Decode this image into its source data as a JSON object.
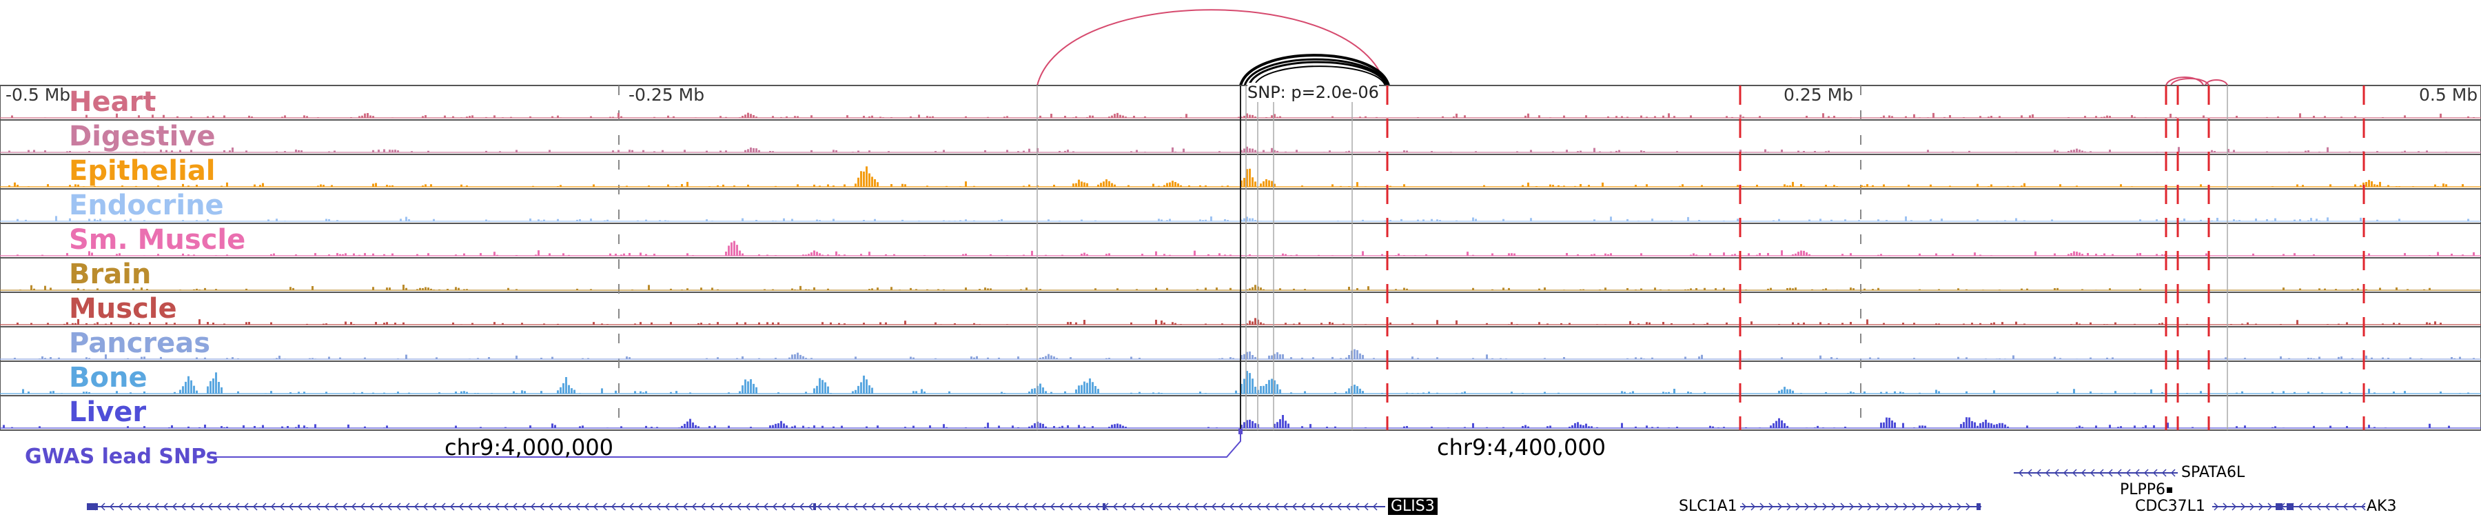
{
  "scale": {
    "left": "-0.5 Mb",
    "left_mid": "-0.25 Mb",
    "right_mid": "0.25 Mb",
    "right": "0.5 Mb"
  },
  "snp_label": "SNP: p=2.0e-06",
  "tracks": [
    {
      "name": "Heart",
      "color": "#d16d84"
    },
    {
      "name": "Digestive",
      "color": "#c97c9f"
    },
    {
      "name": "Epithelial",
      "color": "#f39c12"
    },
    {
      "name": "Endocrine",
      "color": "#9ec3f3"
    },
    {
      "name": "Sm. Muscle",
      "color": "#ea6fb0"
    },
    {
      "name": "Brain",
      "color": "#bb8c2d"
    },
    {
      "name": "Muscle",
      "color": "#c0504d"
    },
    {
      "name": "Pancreas",
      "color": "#8ca5dd"
    },
    {
      "name": "Bone",
      "color": "#5aa7e0"
    },
    {
      "name": "Liver",
      "color": "#4f4ed8"
    }
  ],
  "coordinates": {
    "left": "chr9:4,000,000",
    "right": "chr9:4,400,000"
  },
  "gwas_label": "GWAS lead SNPs",
  "genes": {
    "glis3": "GLIS3",
    "slc1a1": "SLC1A1",
    "spata6l": "SPATA6L",
    "plpp6": "PLPP6",
    "cdc37l1": "CDC37L1",
    "ak3": "AK3"
  },
  "colors": {
    "loop_pink": "#d64a6e",
    "loop_black": "#000000",
    "peak_red": "#e0262e",
    "gene_blue": "#3b3fa8",
    "gwas_blue": "#5b4ccf"
  }
}
